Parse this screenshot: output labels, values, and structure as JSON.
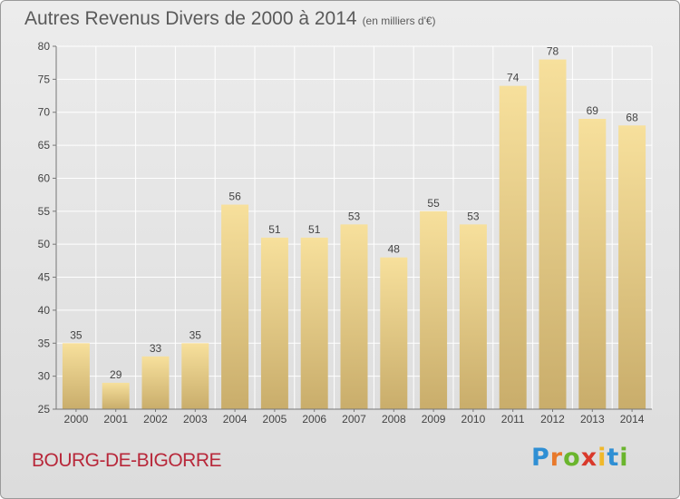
{
  "header": {
    "title": "Autres Revenus Divers de 2000 à 2014",
    "unit": "(en milliers d'€)"
  },
  "footer": {
    "place": "BOURG-DE-BIGORRE",
    "logo_letters": [
      "P",
      "r",
      "o",
      "x",
      "i",
      "t",
      "i"
    ],
    "logo_colors": [
      "#2f8fd4",
      "#e8792b",
      "#6ab52d",
      "#d9392b",
      "#f0b82a",
      "#2f8fd4",
      "#6ab52d"
    ]
  },
  "chart_data": {
    "type": "bar",
    "categories": [
      "2000",
      "2001",
      "2002",
      "2003",
      "2004",
      "2005",
      "2006",
      "2007",
      "2008",
      "2009",
      "2010",
      "2011",
      "2012",
      "2013",
      "2014"
    ],
    "values": [
      35,
      29,
      33,
      35,
      56,
      51,
      51,
      53,
      48,
      55,
      53,
      74,
      78,
      69,
      68
    ],
    "ylim": [
      25,
      80
    ],
    "yticks": [
      25,
      30,
      35,
      40,
      45,
      50,
      55,
      60,
      65,
      70,
      75,
      80
    ],
    "grid": true,
    "colors": {
      "bar_top": "#f7e09c",
      "bar_bottom": "#c9ad6b",
      "grid": "#ffffff",
      "text": "#444444"
    }
  }
}
